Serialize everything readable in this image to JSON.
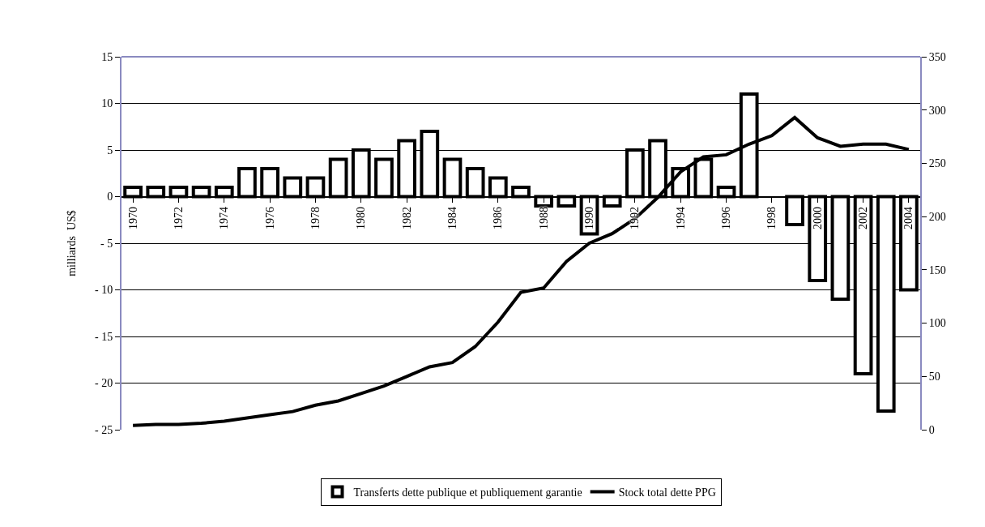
{
  "chart_data": {
    "type": "bar",
    "ylabel": "milliards  US$",
    "categories": [
      "1970",
      null,
      "1972",
      null,
      "1974",
      null,
      "1976",
      null,
      "1978",
      null,
      "1980",
      null,
      "1982",
      null,
      "1984",
      null,
      "1986",
      null,
      "1988",
      null,
      "1990",
      null,
      "1992",
      null,
      "1994",
      null,
      "1996",
      null,
      "1998",
      null,
      "2000",
      null,
      "2002",
      null,
      "2004"
    ],
    "series": [
      {
        "name": "Transferts dette publique et publiquement garantie",
        "color": "#ffffff",
        "values": [
          1,
          1,
          1,
          1,
          1,
          3,
          3,
          2,
          2,
          4,
          5,
          4,
          6,
          7,
          4,
          3,
          2,
          1,
          -1,
          -1,
          -4,
          -1,
          5,
          6,
          3,
          4,
          1,
          11,
          null,
          -3,
          -9,
          -11,
          -19,
          -23,
          -10
        ]
      },
      {
        "name": "Stock total dette PPG",
        "type": "line",
        "axis": "y2",
        "color": "#000000",
        "values": [
          4,
          5,
          5,
          6,
          8,
          11,
          14,
          17,
          23,
          27,
          34,
          41,
          50,
          59,
          63,
          78,
          101,
          129,
          133,
          158,
          175,
          184,
          198,
          218,
          242,
          256,
          258,
          268,
          276,
          293,
          274,
          266,
          268,
          268,
          263
        ]
      }
    ],
    "ylim": [
      -25,
      15
    ],
    "yticks": [
      {
        "value": -25,
        "label": "- 25"
      },
      {
        "value": -20,
        "label": "- 20"
      },
      {
        "value": -15,
        "label": "- 15"
      },
      {
        "value": -10,
        "label": "- 10"
      },
      {
        "value": -5,
        "label": "- 5"
      },
      0,
      5,
      10,
      15
    ],
    "y2lim": [
      0,
      350
    ],
    "y2ticks": [
      0,
      50,
      100,
      150,
      200,
      250,
      300,
      350
    ],
    "grid": "y",
    "legend": "bottom",
    "marker": "none",
    "line_style": "solid"
  }
}
